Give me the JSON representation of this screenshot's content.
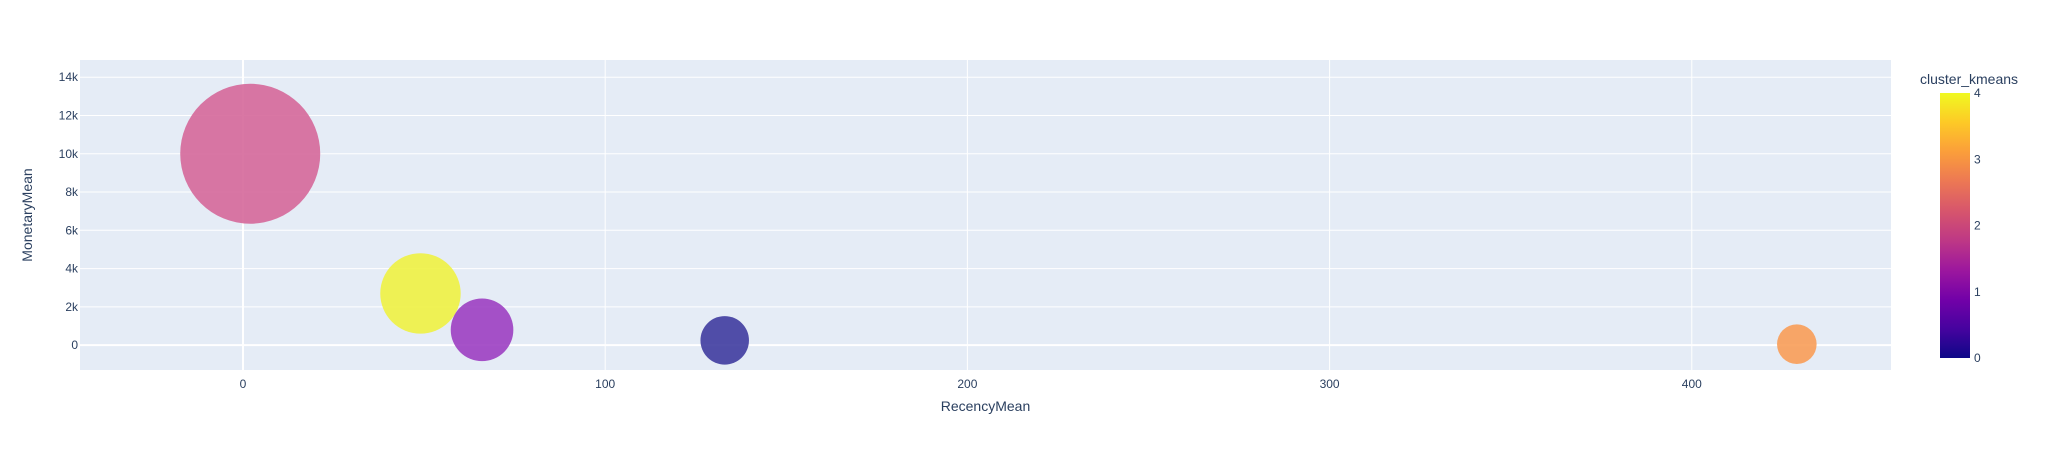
{
  "chart_data": {
    "type": "scatter",
    "subtype": "bubble",
    "title": "",
    "xlabel": "RecencyMean",
    "ylabel": "MonetaryMean",
    "xlim": [
      -45,
      455
    ],
    "ylim": [
      -1300,
      14900
    ],
    "x_ticks": [
      0,
      100,
      200,
      300,
      400
    ],
    "x_tick_labels": [
      "0",
      "100",
      "200",
      "300",
      "400"
    ],
    "y_ticks": [
      0,
      2000,
      4000,
      6000,
      8000,
      10000,
      12000,
      14000
    ],
    "y_tick_labels": [
      "0",
      "2k",
      "4k",
      "6k",
      "8k",
      "10k",
      "12k",
      "14k"
    ],
    "grid": true,
    "color_variable": "cluster_kmeans",
    "colorscale": "plasma",
    "color_range": [
      0,
      4
    ],
    "colorbar_ticks": [
      0,
      1,
      2,
      3,
      4
    ],
    "colorbar_tick_labels": [
      "0",
      "1",
      "2",
      "3",
      "4"
    ],
    "points": [
      {
        "cluster": 2,
        "x": 2,
        "y": 10000,
        "size": 1.0,
        "color": "#d5689a"
      },
      {
        "cluster": 4,
        "x": 49,
        "y": 2700,
        "size": 0.33,
        "color": "#eef242"
      },
      {
        "cluster": 1,
        "x": 66,
        "y": 800,
        "size": 0.2,
        "color": "#9c3fc2"
      },
      {
        "cluster": 0,
        "x": 133,
        "y": 250,
        "size": 0.12,
        "color": "#3f3ca0"
      },
      {
        "cluster": 3,
        "x": 429,
        "y": 50,
        "size": 0.08,
        "color": "#f89d58"
      }
    ]
  }
}
